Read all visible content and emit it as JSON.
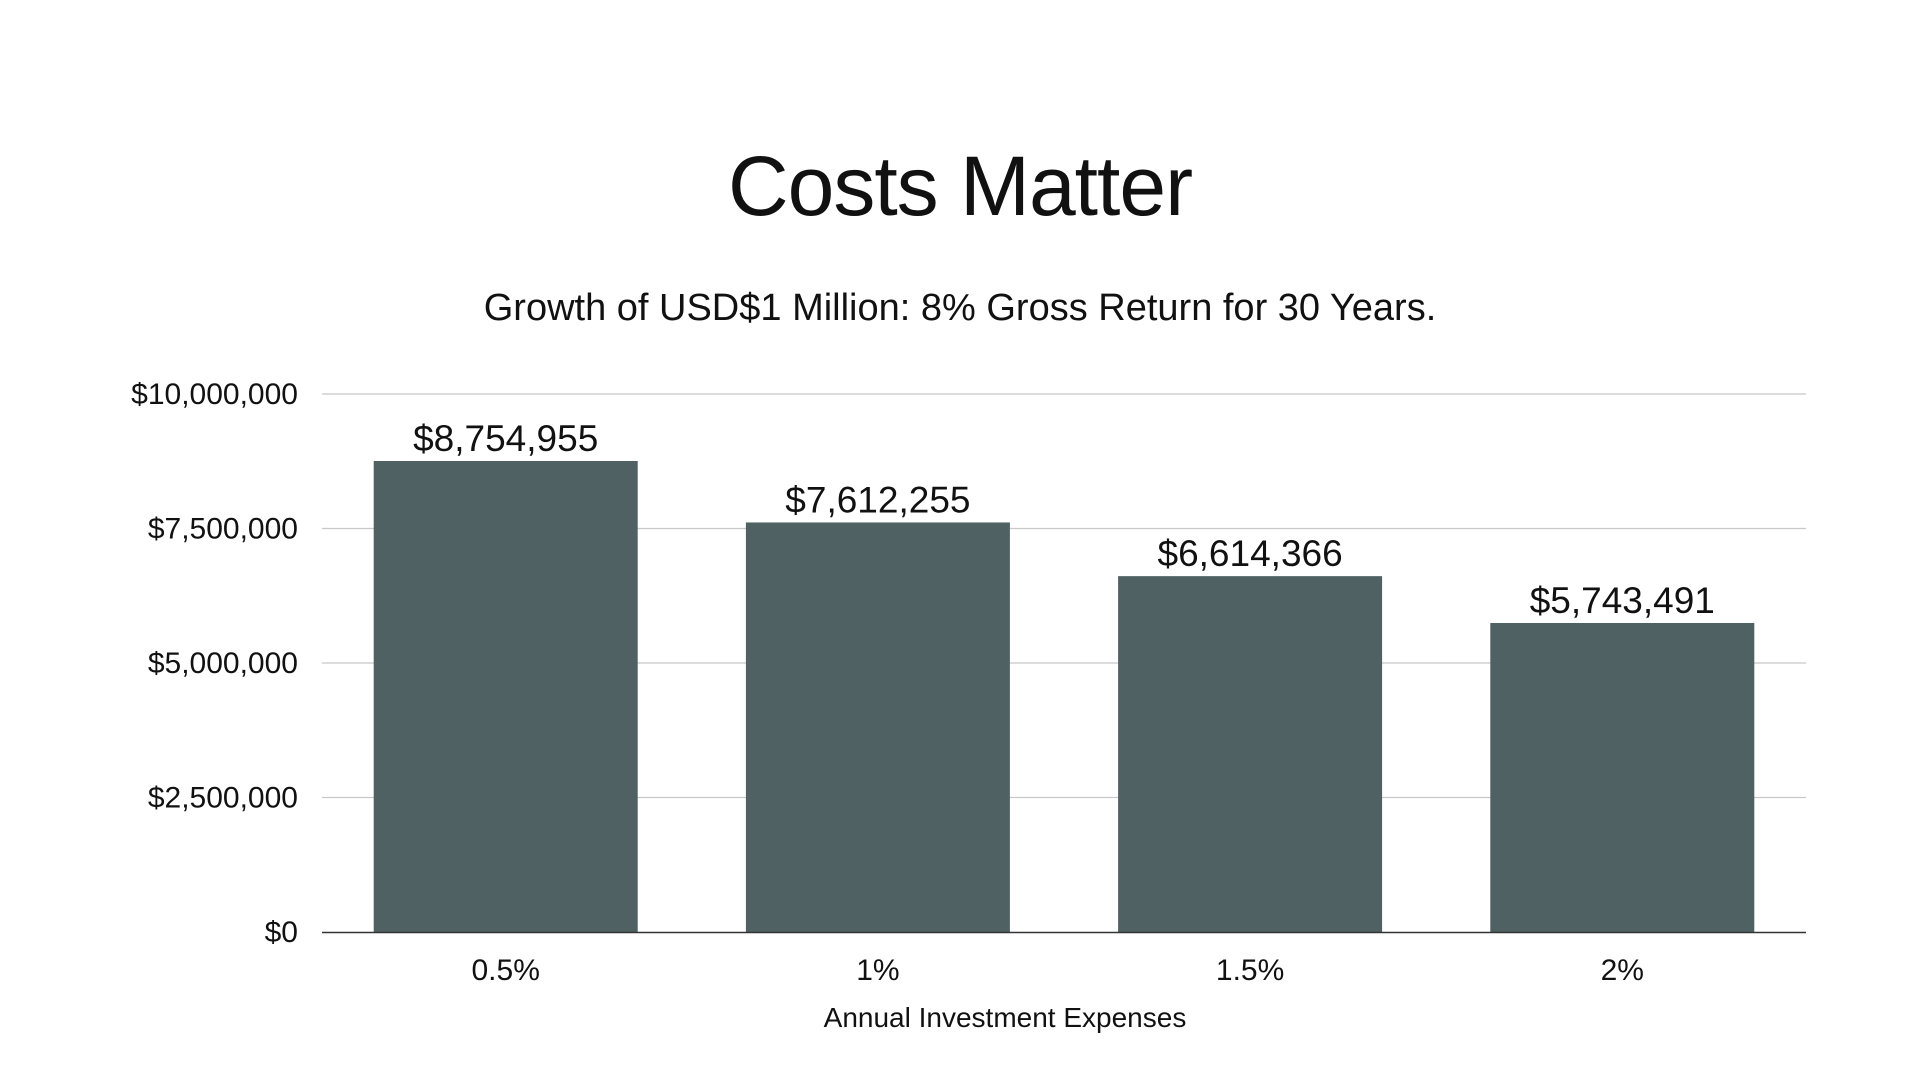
{
  "slide": {
    "title": "Costs Matter"
  },
  "chart_data": {
    "type": "bar",
    "title": "Costs Matter",
    "subtitle": "Growth of  USD$1 Million: 8% Gross Return for 30 Years.",
    "xlabel": "Annual Investment Expenses",
    "ylabel": "",
    "categories": [
      "0.5%",
      "1%",
      "1.5%",
      "2%"
    ],
    "values": [
      8754955,
      7612255,
      6614366,
      5743491
    ],
    "data_labels": [
      "$8,754,955",
      "$7,612,255",
      "$6,614,366",
      "$5,743,491"
    ],
    "ylim": [
      0,
      10000000
    ],
    "yticks": [
      0,
      2500000,
      5000000,
      7500000,
      10000000
    ],
    "ytick_labels": [
      "$0",
      "$2,500,000",
      "$5,000,000",
      "$7,500,000",
      "$10,000,000"
    ],
    "grid": true,
    "legend": "none",
    "bar_color": "#4f6163",
    "grid_color": "#c8c8c8",
    "axis_color": "#333333"
  }
}
